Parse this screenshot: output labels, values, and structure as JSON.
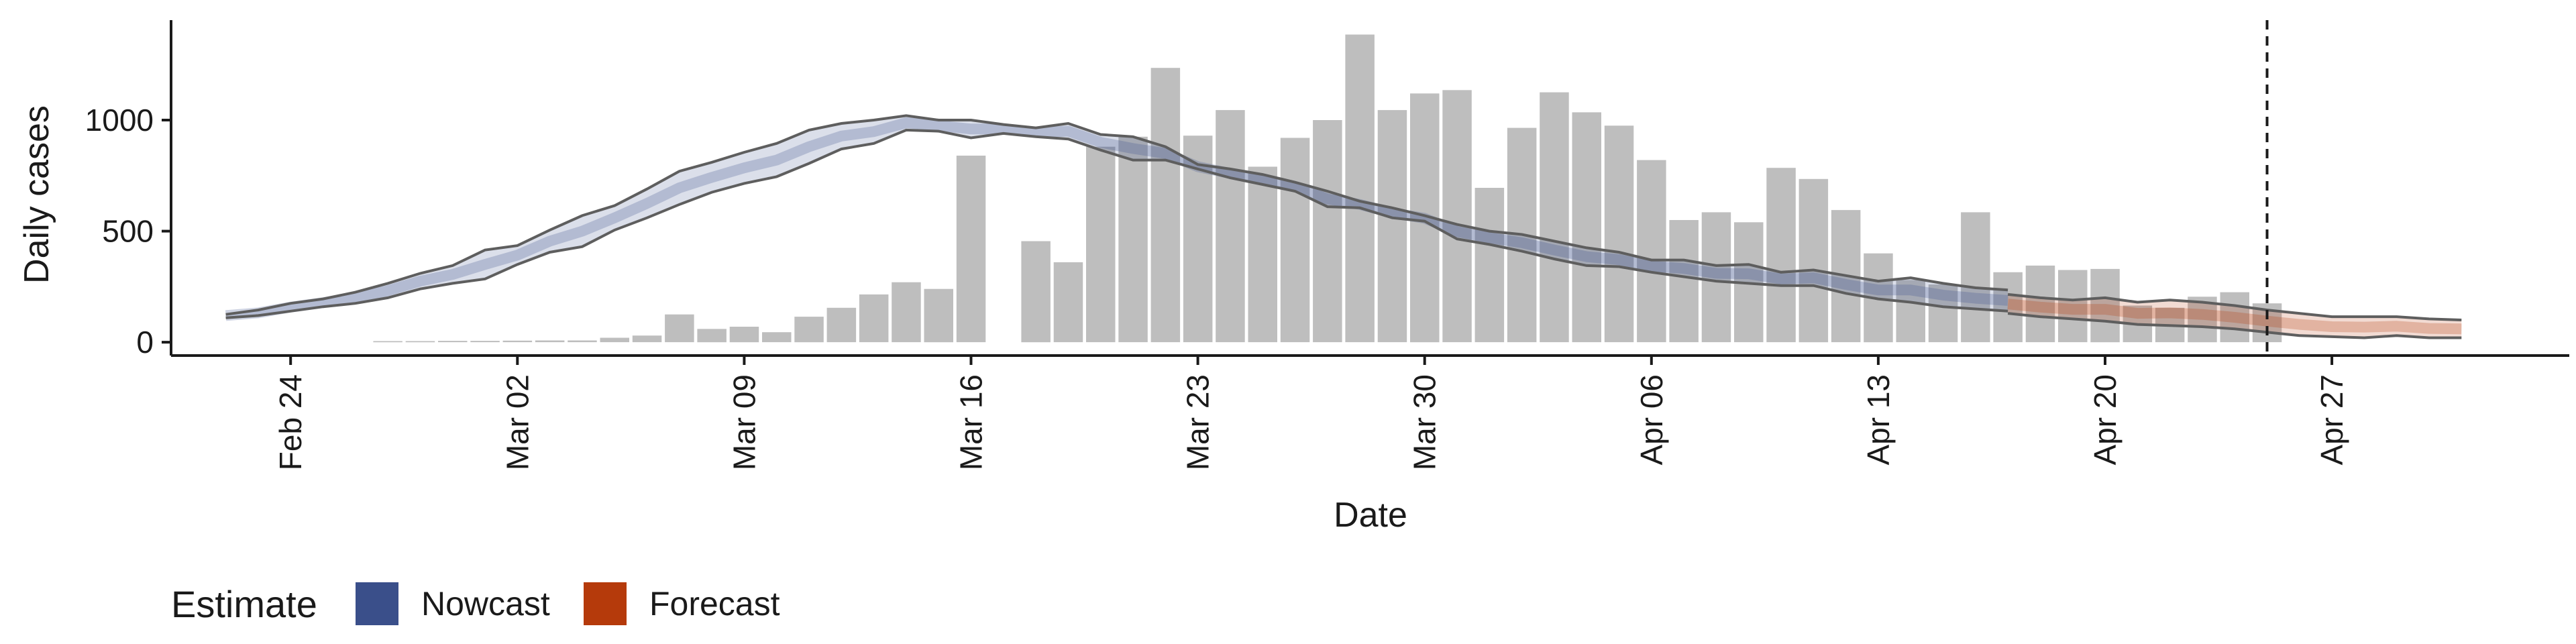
{
  "chart_data": {
    "type": "bar",
    "xlabel": "Date",
    "ylabel": "Daily cases",
    "ylim": [
      -60,
      1450
    ],
    "yticks": [
      0,
      500,
      1000
    ],
    "xticks": [
      "Feb 24",
      "Mar 02",
      "Mar 09",
      "Mar 16",
      "Mar 23",
      "Mar 30",
      "Apr 06",
      "Apr 13",
      "Apr 20",
      "Apr 27"
    ],
    "first_date": "Feb 22",
    "last_date": "Apr 29",
    "reference_date": "Apr 25",
    "grid": false,
    "legend": {
      "title": "Estimate",
      "position": "bottom-left",
      "items": [
        {
          "label": "Nowcast",
          "color": "#3A4F8A"
        },
        {
          "label": "Forecast",
          "color": "#B53A0B"
        }
      ]
    },
    "colors": {
      "bars": "#BEBEBE",
      "nowcast": "#3A4F8A",
      "forecast": "#B53A0B",
      "bounds": "#5E5E5E"
    },
    "bars": {
      "start_date": "Feb 27",
      "values": [
        5,
        5,
        6,
        6,
        7,
        8,
        8,
        20,
        30,
        125,
        60,
        70,
        45,
        115,
        155,
        215,
        270,
        240,
        840,
        0,
        455,
        360,
        880,
        925,
        1235,
        930,
        1045,
        790,
        920,
        1000,
        1385,
        1045,
        1120,
        1135,
        695,
        965,
        1125,
        1035,
        975,
        820,
        550,
        585,
        540,
        785,
        735,
        595,
        400,
        280,
        260,
        585,
        315,
        345,
        325,
        330,
        165,
        155,
        205,
        225,
        175
      ]
    },
    "nowcast": {
      "start_date": "Feb 22",
      "upper": [
        125,
        145,
        175,
        195,
        225,
        265,
        310,
        345,
        415,
        435,
        505,
        570,
        615,
        690,
        770,
        810,
        855,
        895,
        955,
        985,
        1000,
        1020,
        1000,
        1000,
        980,
        965,
        985,
        935,
        925,
        880,
        800,
        780,
        755,
        720,
        680,
        635,
        605,
        570,
        530,
        500,
        485,
        455,
        425,
        405,
        370,
        370,
        345,
        350,
        315,
        325,
        300,
        275,
        290,
        265,
        245,
        235
      ],
      "lower": [
        110,
        120,
        140,
        160,
        175,
        200,
        240,
        265,
        285,
        350,
        405,
        430,
        505,
        560,
        620,
        675,
        715,
        745,
        805,
        870,
        895,
        955,
        950,
        920,
        940,
        925,
        915,
        865,
        820,
        820,
        780,
        740,
        710,
        680,
        610,
        605,
        560,
        545,
        465,
        440,
        410,
        375,
        345,
        340,
        315,
        295,
        275,
        265,
        255,
        255,
        220,
        195,
        180,
        160,
        150,
        140
      ],
      "median": [
        120,
        132,
        158,
        178,
        200,
        232,
        275,
        305,
        350,
        392,
        455,
        500,
        560,
        625,
        695,
        742,
        785,
        820,
        880,
        928,
        948,
        988,
        975,
        960,
        960,
        945,
        950,
        900,
        872,
        850,
        790,
        760,
        732,
        700,
        645,
        620,
        582,
        558,
        498,
        470,
        448,
        415,
        385,
        372,
        342,
        332,
        310,
        308,
        285,
        290,
        260,
        235,
        235,
        212,
        198,
        188
      ]
    },
    "forecast": {
      "start_date": "Apr 17",
      "upper": [
        215,
        200,
        190,
        200,
        180,
        190,
        180,
        165,
        145,
        130,
        115,
        115,
        115,
        105,
        100
      ],
      "lower": [
        130,
        115,
        105,
        95,
        80,
        75,
        70,
        60,
        45,
        30,
        25,
        20,
        30,
        20,
        20
      ],
      "median": [
        172,
        158,
        148,
        148,
        130,
        132,
        125,
        112,
        95,
        80,
        70,
        68,
        72,
        62,
        60
      ]
    }
  }
}
